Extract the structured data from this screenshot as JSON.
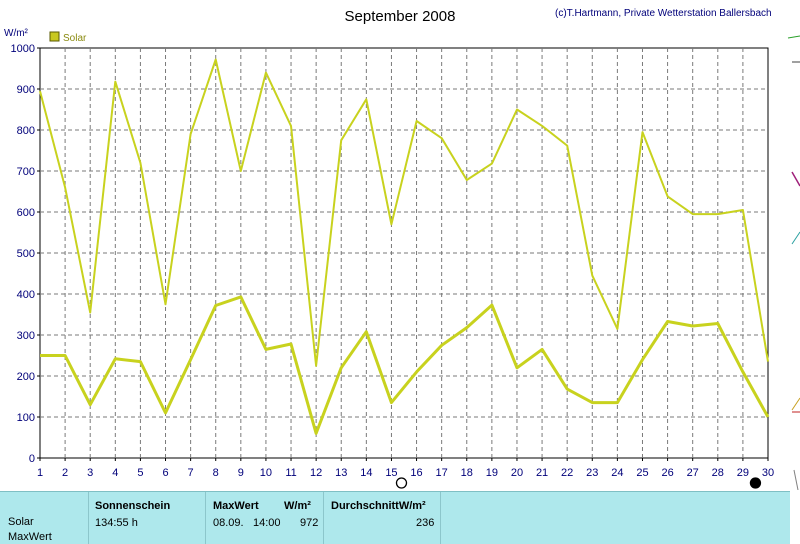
{
  "chart_data": {
    "type": "line",
    "title": "September 2008",
    "copyright": "(c)T.Hartmann, Private Wetterstation Ballersbach",
    "ylabel": "W/m²",
    "ylim": [
      0,
      1000
    ],
    "yticks": [
      0,
      100,
      200,
      300,
      400,
      500,
      600,
      700,
      800,
      900,
      1000
    ],
    "xlim": [
      1,
      30
    ],
    "x": [
      1,
      2,
      3,
      4,
      5,
      6,
      7,
      8,
      9,
      10,
      11,
      12,
      13,
      14,
      15,
      16,
      17,
      18,
      19,
      20,
      21,
      22,
      23,
      24,
      25,
      26,
      27,
      28,
      29,
      30
    ],
    "grid": true,
    "legend": {
      "entries": [
        "Solar"
      ],
      "placement": "top-left",
      "color": "#c8c820"
    },
    "series": [
      {
        "name": "Solar",
        "role": "max",
        "color": "#c8d21e",
        "values": [
          895,
          660,
          355,
          918,
          720,
          375,
          790,
          972,
          700,
          940,
          810,
          225,
          775,
          875,
          570,
          822,
          780,
          678,
          718,
          850,
          810,
          762,
          445,
          315,
          795,
          638,
          595,
          595,
          605,
          235
        ]
      },
      {
        "role": "average",
        "color": "#c8d21e",
        "values": [
          250,
          250,
          130,
          242,
          235,
          110,
          240,
          372,
          393,
          265,
          278,
          60,
          220,
          308,
          135,
          210,
          275,
          318,
          373,
          220,
          265,
          168,
          135,
          135,
          240,
          333,
          322,
          328,
          210,
          100
        ]
      }
    ],
    "markers": [
      {
        "x": 15.4,
        "type": "new-moon-open-circle"
      },
      {
        "x": 29.5,
        "type": "full-moon-filled-circle"
      }
    ]
  },
  "panel": {
    "sunshine_header": "Sonnenschein",
    "sunshine_value": "134:55 h",
    "max_header": "MaxWert",
    "max_unit": "W/m²",
    "max_date": "08.09.",
    "max_time": "14:00",
    "max_value": "972",
    "avg_header": "DurchschnittW/m²",
    "avg_value": "236",
    "row_label_solar": "Solar",
    "row_label_max": "MaxWert"
  }
}
